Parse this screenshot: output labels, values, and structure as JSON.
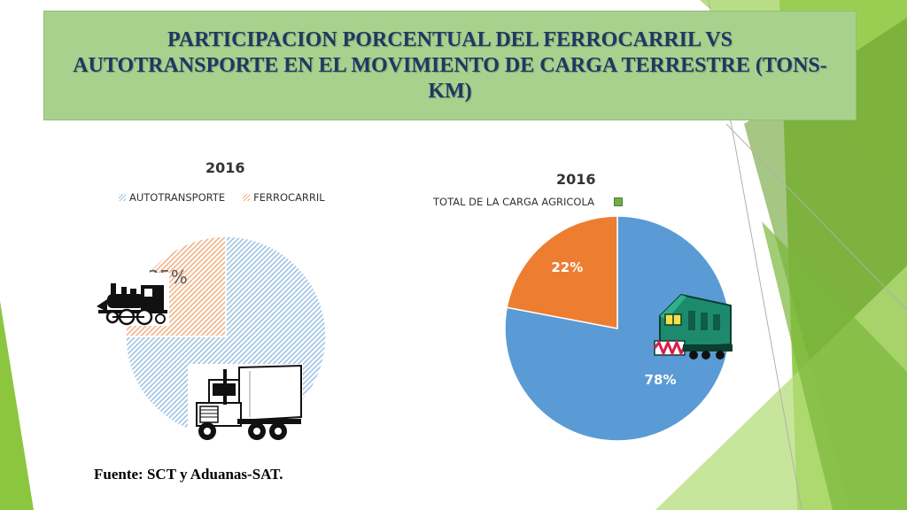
{
  "title": "PARTICIPACION PORCENTUAL DEL FERROCARRIL VS AUTOTRANSPORTE EN EL MOVIMIENTO DE CARGA TERRESTRE (TONS-KM)",
  "source": "Fuente: SCT y Aduanas-SAT.",
  "colors": {
    "accent_green": "#8cc63f",
    "title_bg": "#a9d18e",
    "autotransporte": "#9dc3e6",
    "ferrocarril": "#f4b183",
    "blue_slice": "#5b9bd5",
    "orange_slice": "#ed7d31"
  },
  "icons": [
    "steam-locomotive-icon",
    "semi-truck-icon",
    "diesel-locomotive-icon"
  ],
  "chart_data": [
    {
      "type": "pie",
      "title": "2016",
      "categories": [
        "AUTOTRANSPORTE",
        "FERROCARRIL"
      ],
      "values": [
        75,
        25
      ],
      "labels": [
        "75%",
        "25%"
      ],
      "legend_position": "top",
      "style": "hatched, ferrocarril slice exploded"
    },
    {
      "type": "pie",
      "title": "2016",
      "legend": [
        "TOTAL DE LA CARGA AGRICOLA"
      ],
      "values": [
        78,
        22
      ],
      "labels": [
        "78%",
        "22%"
      ],
      "legend_position": "top"
    }
  ]
}
